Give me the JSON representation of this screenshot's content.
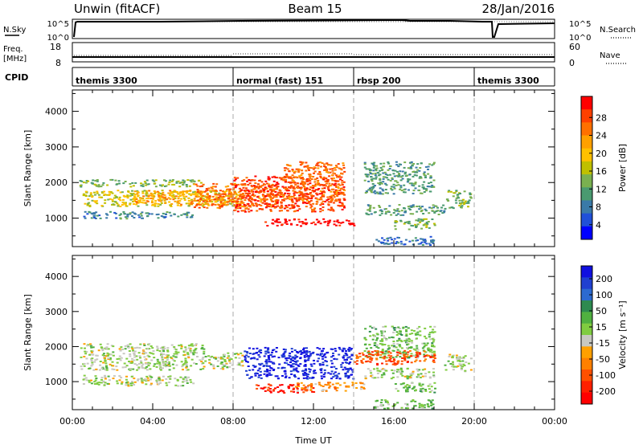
{
  "header": {
    "radar": "Unwin (fitACF)",
    "beam": "Beam 15",
    "date": "28/Jan/2016"
  },
  "noise_panel": {
    "left_label": "N.Sky",
    "left_ticks": [
      "10^5",
      "10^0"
    ],
    "right_ticks": [
      "10^5",
      "10^0"
    ],
    "right_label": "N.Search"
  },
  "freq_panel": {
    "left_label_1": "Freq.",
    "left_label_2": "[MHz]",
    "left_ticks": [
      "18",
      "8"
    ],
    "right_ticks": [
      "60",
      "0"
    ],
    "right_label": "Nave"
  },
  "cpid": {
    "label": "CPID",
    "segments": [
      {
        "label": "themis 3300",
        "start_hour": 0
      },
      {
        "label": "normal (fast) 151",
        "start_hour": 8
      },
      {
        "label": "rbsp 200",
        "start_hour": 14
      },
      {
        "label": "themis 3300",
        "start_hour": 20
      }
    ]
  },
  "colors": {
    "power": [
      "#0000ff",
      "#2050d8",
      "#3a7aa8",
      "#4a9a70",
      "#7ab050",
      "#c0c000",
      "#ffc000",
      "#ffa000",
      "#ff7000",
      "#ff4000",
      "#ff0000"
    ],
    "velocity": [
      "#1010e0",
      "#2040d0",
      "#2c6ad0",
      "#2e8a50",
      "#50b040",
      "#80cc40",
      "#c8c8c0",
      "#ffa000",
      "#ff8000",
      "#ff5000",
      "#ff2000",
      "#ff0000"
    ]
  },
  "chart_data": [
    {
      "type": "heatmap",
      "name": "power",
      "ylabel": "Slant Range [km]",
      "xlabel": "",
      "xlim": [
        0,
        24
      ],
      "ylim": [
        200,
        4600
      ],
      "x_ticks": [
        0,
        4,
        8,
        12,
        16,
        20,
        24
      ],
      "y_ticks": [
        1000,
        2000,
        3000,
        4000
      ],
      "colorbar": {
        "label": "Power [dB]",
        "ticks": [
          "4",
          "8",
          "12",
          "16",
          "20",
          "24",
          "28"
        ],
        "range": [
          0,
          30
        ]
      },
      "regions": [
        {
          "x": [
            0.5,
            8.5
          ],
          "y": [
            1350,
            1800
          ],
          "value": 16
        },
        {
          "x": [
            0.3,
            6.5
          ],
          "y": [
            1900,
            2100
          ],
          "value": 12
        },
        {
          "x": [
            0.5,
            6.0
          ],
          "y": [
            1000,
            1200
          ],
          "value": 8
        },
        {
          "x": [
            3.0,
            8.0
          ],
          "y": [
            1400,
            1800
          ],
          "value": 20
        },
        {
          "x": [
            6.0,
            10.5
          ],
          "y": [
            1300,
            2000
          ],
          "value": 24
        },
        {
          "x": [
            8.0,
            13.5
          ],
          "y": [
            1200,
            2200
          ],
          "value": 26
        },
        {
          "x": [
            9.5,
            14.0
          ],
          "y": [
            800,
            1000
          ],
          "value": 30
        },
        {
          "x": [
            10.5,
            13.5
          ],
          "y": [
            1500,
            2600
          ],
          "value": 24
        },
        {
          "x": [
            14.5,
            18.0
          ],
          "y": [
            1700,
            2600
          ],
          "value": 10
        },
        {
          "x": [
            14.5,
            18.5
          ],
          "y": [
            1100,
            1400
          ],
          "value": 10
        },
        {
          "x": [
            16.0,
            18.0
          ],
          "y": [
            700,
            1000
          ],
          "value": 12
        },
        {
          "x": [
            18.5,
            19.8
          ],
          "y": [
            1300,
            1800
          ],
          "value": 12
        },
        {
          "x": [
            15.0,
            18.0
          ],
          "y": [
            250,
            500
          ],
          "value": 6
        }
      ]
    },
    {
      "type": "heatmap",
      "name": "velocity",
      "ylabel": "Slant Range [km]",
      "xlabel": "Time UT",
      "xlim": [
        0,
        24
      ],
      "ylim": [
        200,
        4600
      ],
      "x_ticks": [
        0,
        4,
        8,
        12,
        16,
        20,
        24
      ],
      "x_tick_labels": [
        "00:00",
        "04:00",
        "08:00",
        "12:00",
        "16:00",
        "20:00",
        "00:00"
      ],
      "y_ticks": [
        1000,
        2000,
        3000,
        4000
      ],
      "colorbar": {
        "label": "Velocity [m s⁻¹]",
        "ticks": [
          "200",
          "100",
          "50",
          "15",
          "-15",
          "-50",
          "-100",
          "-200"
        ],
        "range": [
          -250,
          250
        ]
      },
      "regions": [
        {
          "x": [
            0.3,
            8.5
          ],
          "y": [
            1350,
            1850
          ],
          "value": 0
        },
        {
          "x": [
            0.3,
            6.5
          ],
          "y": [
            1850,
            2100
          ],
          "value": 0
        },
        {
          "x": [
            0.5,
            6.0
          ],
          "y": [
            900,
            1200
          ],
          "value": 0
        },
        {
          "x": [
            8.5,
            14.0
          ],
          "y": [
            1100,
            2000
          ],
          "value": 220
        },
        {
          "x": [
            9.0,
            12.0
          ],
          "y": [
            700,
            950
          ],
          "value": -200
        },
        {
          "x": [
            11.0,
            14.5
          ],
          "y": [
            750,
            1000
          ],
          "value": -80
        },
        {
          "x": [
            14.5,
            18.0
          ],
          "y": [
            1700,
            2600
          ],
          "value": 40
        },
        {
          "x": [
            14.5,
            18.0
          ],
          "y": [
            1100,
            1400
          ],
          "value": 0
        },
        {
          "x": [
            16.0,
            18.0
          ],
          "y": [
            700,
            1000
          ],
          "value": 40
        },
        {
          "x": [
            14.0,
            18.0
          ],
          "y": [
            1500,
            1900
          ],
          "value": -150
        },
        {
          "x": [
            18.5,
            19.8
          ],
          "y": [
            1300,
            1800
          ],
          "value": 0
        },
        {
          "x": [
            15.0,
            18.0
          ],
          "y": [
            250,
            500
          ],
          "value": 40
        }
      ]
    }
  ]
}
